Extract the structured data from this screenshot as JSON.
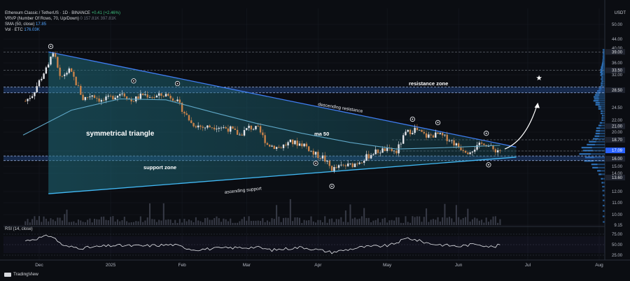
{
  "header": {
    "symbol": "Ethereum Classic / TetherUS · 1D · BINANCE",
    "change": "+0.41 (+2.46%)",
    "vrvp": "VRVP (Number Of Rows, 70, Up/Down)",
    "vrvp_vals": "0  157.81K  397.81K",
    "sma_label": "SMA (50, close)",
    "sma_value": "17.85",
    "vol_label": "Vol · ETC",
    "vol_value": "176.03K",
    "rsi_label": "RSI (14, close)"
  },
  "brand": "TradingView",
  "price_axis_unit": "USDT",
  "chart_data": {
    "type": "candlestick",
    "y_ticks": [
      50.0,
      44.0,
      40.0,
      36.0,
      32.0,
      28.5,
      24.5,
      22.0,
      20.0,
      17.0,
      15.0,
      14.0,
      12.0,
      11.0,
      10.0,
      9.15
    ],
    "highlighted_levels": [
      39.0,
      33.5,
      28.5,
      21.0,
      18.7,
      17.09,
      16.0,
      13.6
    ],
    "current_price": 17.09,
    "x_labels": [
      "Dec",
      "2025",
      "Feb",
      "Mar",
      "Apr",
      "May",
      "Jun",
      "Jul",
      "Aug"
    ],
    "rsi_ticks": [
      75.0,
      50.0,
      25.0
    ],
    "annotations": {
      "pattern": "symmetrical triangle",
      "resistance_zone": "resistance zone",
      "support_zone": "support zone",
      "ma": "ma 50",
      "upper_line": "descending resistance",
      "lower_line": "ascending support"
    },
    "close_path": [
      [
        "2024-11-24",
        25.5
      ],
      [
        "2024-11-28",
        27.5
      ],
      [
        "2024-12-02",
        31.5
      ],
      [
        "2024-12-05",
        35.0
      ],
      [
        "2024-12-06",
        38.5
      ],
      [
        "2024-12-08",
        37.0
      ],
      [
        "2024-12-10",
        31.0
      ],
      [
        "2024-12-14",
        33.5
      ],
      [
        "2024-12-18",
        29.0
      ],
      [
        "2024-12-20",
        26.5
      ],
      [
        "2024-12-24",
        27.5
      ],
      [
        "2024-12-28",
        26.0
      ],
      [
        "2025-01-02",
        27.0
      ],
      [
        "2025-01-06",
        28.0
      ],
      [
        "2025-01-10",
        26.0
      ],
      [
        "2025-01-15",
        27.5
      ],
      [
        "2025-01-20",
        27.0
      ],
      [
        "2025-01-25",
        27.5
      ],
      [
        "2025-01-29",
        26.5
      ],
      [
        "2025-02-02",
        23.5
      ],
      [
        "2025-02-05",
        21.5
      ],
      [
        "2025-02-10",
        20.8
      ],
      [
        "2025-02-16",
        21.0
      ],
      [
        "2025-02-22",
        20.5
      ],
      [
        "2025-02-26",
        19.5
      ],
      [
        "2025-03-02",
        20.8
      ],
      [
        "2025-03-06",
        20.5
      ],
      [
        "2025-03-10",
        18.0
      ],
      [
        "2025-03-15",
        17.5
      ],
      [
        "2025-03-20",
        18.3
      ],
      [
        "2025-03-26",
        18.0
      ],
      [
        "2025-03-30",
        16.6
      ],
      [
        "2025-04-03",
        16.2
      ],
      [
        "2025-04-07",
        14.6
      ],
      [
        "2025-04-11",
        15.0
      ],
      [
        "2025-04-16",
        15.2
      ],
      [
        "2025-04-21",
        16.0
      ],
      [
        "2025-04-25",
        16.8
      ],
      [
        "2025-04-30",
        17.2
      ],
      [
        "2025-05-05",
        16.9
      ],
      [
        "2025-05-09",
        19.8
      ],
      [
        "2025-05-13",
        20.5
      ],
      [
        "2025-05-18",
        19.3
      ],
      [
        "2025-05-23",
        19.6
      ],
      [
        "2025-05-28",
        18.8
      ],
      [
        "2025-06-01",
        17.6
      ],
      [
        "2025-06-05",
        17.0
      ],
      [
        "2025-06-09",
        17.6
      ],
      [
        "2025-06-12",
        18.3
      ],
      [
        "2025-06-16",
        17.2
      ],
      [
        "2025-06-19",
        17.09
      ]
    ],
    "sma50_path": [
      [
        "2024-11-24",
        19.5
      ],
      [
        "2024-12-15",
        24.0
      ],
      [
        "2025-01-05",
        26.5
      ],
      [
        "2025-01-25",
        26.3
      ],
      [
        "2025-02-15",
        23.5
      ],
      [
        "2025-03-05",
        21.5
      ],
      [
        "2025-03-25",
        19.8
      ],
      [
        "2025-04-15",
        18.3
      ],
      [
        "2025-05-05",
        17.3
      ],
      [
        "2025-05-25",
        17.5
      ],
      [
        "2025-06-19",
        17.85
      ]
    ],
    "descending_resistance": [
      [
        "2024-12-05",
        39.0
      ],
      [
        "2025-06-26",
        17.6
      ]
    ],
    "ascending_support": [
      [
        "2024-12-05",
        11.8
      ],
      [
        "2025-06-26",
        16.2
      ]
    ],
    "projection": [
      [
        "2025-06-21",
        17.3
      ],
      [
        "2025-06-30",
        18.5
      ],
      [
        "2025-07-05",
        25.0
      ]
    ],
    "target": [
      "2025-07-05",
      30.0
    ],
    "rsi_path": [
      [
        "2024-11-24",
        58
      ],
      [
        "2024-12-06",
        72
      ],
      [
        "2024-12-12",
        46
      ],
      [
        "2024-12-20",
        42
      ],
      [
        "2025-01-02",
        48
      ],
      [
        "2025-01-15",
        47
      ],
      [
        "2025-01-28",
        50
      ],
      [
        "2025-02-06",
        38
      ],
      [
        "2025-02-20",
        42
      ],
      [
        "2025-03-05",
        44
      ],
      [
        "2025-03-12",
        37
      ],
      [
        "2025-03-25",
        44
      ],
      [
        "2025-04-07",
        32
      ],
      [
        "2025-04-20",
        44
      ],
      [
        "2025-05-02",
        48
      ],
      [
        "2025-05-10",
        66
      ],
      [
        "2025-05-20",
        52
      ],
      [
        "2025-06-01",
        46
      ],
      [
        "2025-06-09",
        52
      ],
      [
        "2025-06-16",
        44
      ],
      [
        "2025-06-19",
        50
      ]
    ]
  }
}
